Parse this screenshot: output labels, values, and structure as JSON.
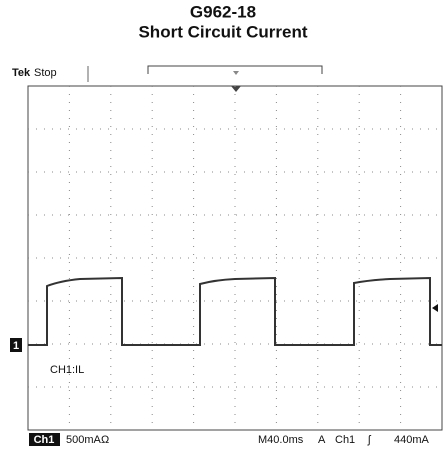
{
  "title": {
    "line1": "G962-18",
    "line2": "Short Circuit Current"
  },
  "scope": {
    "status_brand": "Tek",
    "status": "Stop",
    "channel_marker": "1",
    "trace_label": "CH1:IL",
    "bottom": {
      "channel": "Ch1",
      "scale": "500mA",
      "coupling": "Ω",
      "timebase": "M40.0ms",
      "trigger_mode": "A",
      "trigger_channel": "Ch1",
      "trigger_slope": "ʃ",
      "trigger_level": "440mA"
    }
  }
}
